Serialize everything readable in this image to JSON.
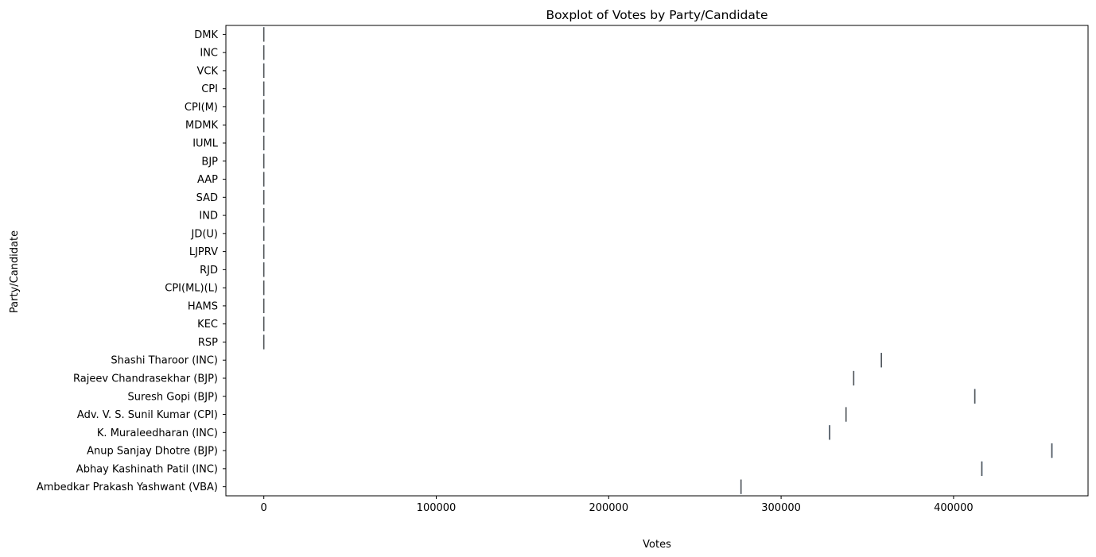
{
  "chart_data": {
    "type": "boxplot",
    "orientation": "horizontal",
    "title": "Boxplot of Votes by Party/Candidate",
    "xlabel": "Votes",
    "ylabel": "Party/Candidate",
    "xlim": [
      -22000,
      478000
    ],
    "xticks": [
      0,
      100000,
      200000,
      300000,
      400000
    ],
    "grid": false,
    "box_color": "#3a7bbf",
    "whisker_color": "#555555",
    "categories": [
      "DMK",
      "INC",
      "VCK",
      "CPI",
      "CPI(M)",
      "MDMK",
      "IUML",
      "BJP",
      "AAP",
      "SAD",
      "IND",
      "JD(U)",
      "LJPRV",
      "RJD",
      "CPI(ML)(L)",
      "HAMS",
      "KEC",
      "RSP",
      "Shashi Tharoor (INC)",
      "Rajeev Chandrasekhar (BJP)",
      "Suresh Gopi (BJP)",
      "Adv. V. S. Sunil Kumar (CPI)",
      "K. Muraleedharan (INC)",
      "Anup Sanjay Dhotre (BJP)",
      "Abhay Kashinath Patil (INC)",
      "Ambedkar Prakash Yashwant (VBA)"
    ],
    "values": [
      0,
      0,
      0,
      0,
      0,
      0,
      0,
      0,
      0,
      0,
      0,
      0,
      0,
      0,
      0,
      0,
      0,
      0,
      358155,
      342078,
      412338,
      337652,
      328124,
      457030,
      416404,
      276747
    ]
  }
}
